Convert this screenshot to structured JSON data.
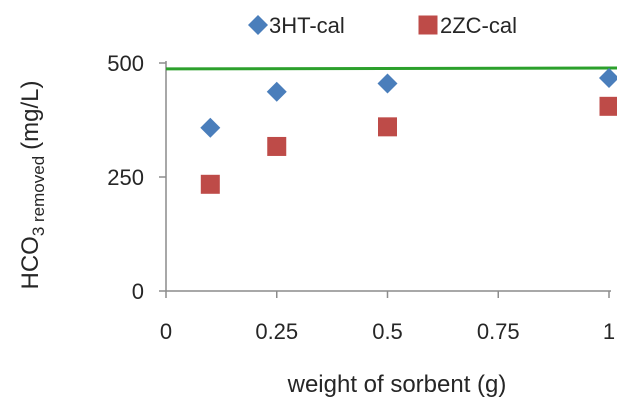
{
  "chart_data": {
    "type": "scatter",
    "title": "",
    "xlabel": "weight of sorbent (g)",
    "ylabel": {
      "main": "HCO",
      "sub": "3 removed",
      "units": "(mg/L)"
    },
    "xlim": [
      0,
      1
    ],
    "ylim": [
      0,
      500
    ],
    "xticks": [
      0,
      0.25,
      0.5,
      0.75,
      1
    ],
    "xtick_labels": [
      "0",
      "0.25",
      "0.5",
      "0.75",
      "1"
    ],
    "yticks": [
      0,
      250,
      500
    ],
    "ytick_labels": [
      "0",
      "250",
      "500"
    ],
    "grid": false,
    "legend_position": "top",
    "series": [
      {
        "name": "3HT-cal",
        "marker": "diamond",
        "color": "#4a7ebb",
        "x": [
          0.1,
          0.25,
          0.5,
          1.0
        ],
        "y": [
          358,
          437,
          455,
          467
        ]
      },
      {
        "name": "2ZC-cal",
        "marker": "square",
        "color": "#be4b48",
        "x": [
          0.1,
          0.25,
          0.5,
          1.0
        ],
        "y": [
          234,
          317,
          360,
          405
        ]
      }
    ],
    "reference_lines": [
      {
        "type": "horizontal",
        "color": "#2ca02c",
        "y_start": 487,
        "y_end": 489
      }
    ]
  }
}
